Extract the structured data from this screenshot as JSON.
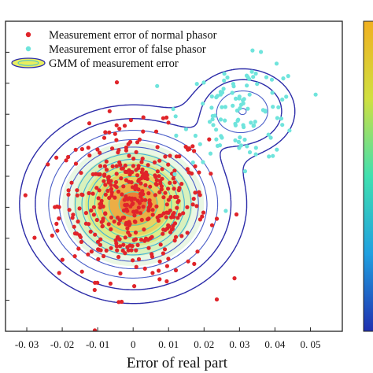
{
  "chart_data": {
    "type": "scatter",
    "title": "",
    "xlabel": "Error of real part",
    "ylabel": "",
    "xlim": [
      -0.036,
      0.059
    ],
    "ylim": [
      -1.0,
      1.0
    ],
    "x_ticks": [
      -0.03,
      -0.02,
      -0.01,
      0,
      0.01,
      0.02,
      0.03,
      0.04,
      0.05
    ],
    "x_tick_labels": [
      "-0. 03",
      "-0. 02",
      "-0. 01",
      "0",
      "0. 01",
      "0. 02",
      "0. 03",
      "0. 04",
      "0. 05"
    ],
    "grid": false,
    "legend_position": "top-left",
    "legend": [
      {
        "label": "Measurement error of normal phasor",
        "marker": "dot",
        "color": "#e0242a"
      },
      {
        "label": "Measurement error of false phasor",
        "marker": "dot",
        "color": "#6fe4dc"
      },
      {
        "label": "GMM of measurement error",
        "marker": "ellipse",
        "color": "#2b2ba8"
      }
    ],
    "series": [
      {
        "name": "Measurement error of normal phasor",
        "color": "#e0242a",
        "distribution": "gaussian",
        "count": 420,
        "center": [
          0.0,
          -0.18
        ],
        "std": [
          0.0105,
          0.24
        ]
      },
      {
        "name": "Measurement error of false phasor",
        "color": "#6fe4dc",
        "distribution": "gaussian",
        "count": 110,
        "center": [
          0.031,
          0.42
        ],
        "std": [
          0.0085,
          0.16
        ]
      }
    ],
    "gmm": {
      "name": "GMM of measurement error",
      "components": [
        {
          "center": [
            0.0,
            -0.18
          ],
          "std": [
            0.0125,
            0.25
          ],
          "weight": 0.8
        },
        {
          "center": [
            0.031,
            0.42
          ],
          "std": [
            0.0075,
            0.14
          ],
          "weight": 0.2
        }
      ]
    },
    "colorbar": {
      "colors": [
        "#2030b0",
        "#20a0e0",
        "#40e0b0",
        "#d0e040",
        "#f0b020"
      ],
      "side": "right"
    }
  }
}
